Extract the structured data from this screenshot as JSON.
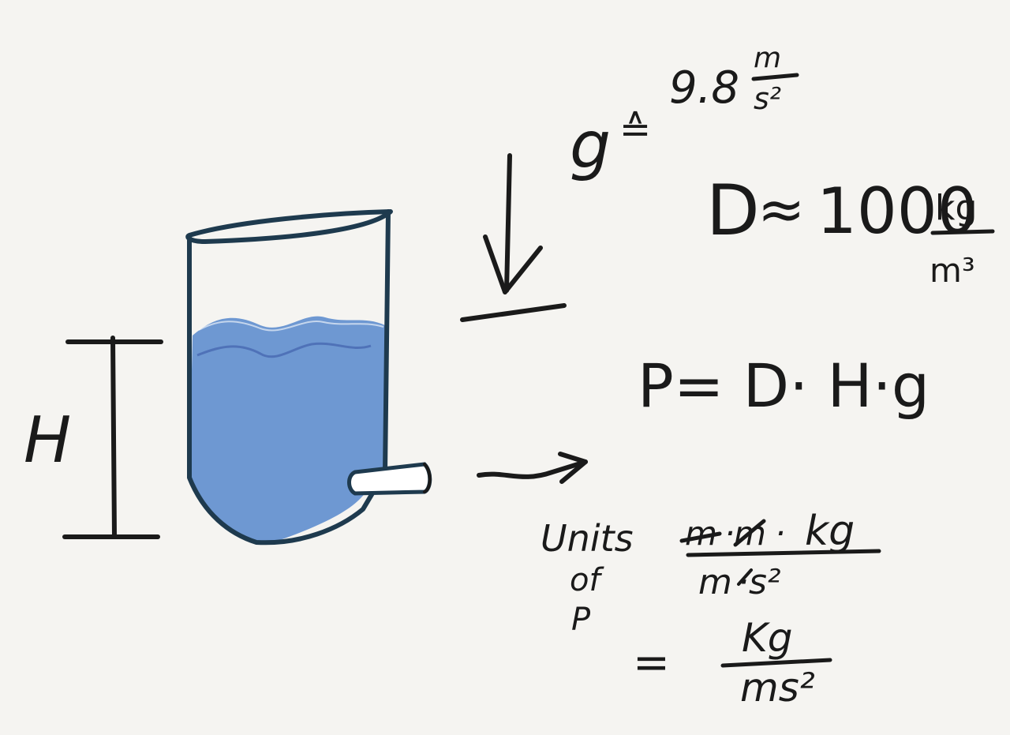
{
  "colors": {
    "background": "#f5f4f1",
    "ink": "#1a1a1a",
    "tank_outline": "#1e3a4e",
    "water": "#6e98d2",
    "water_crest": "#4f72b8"
  },
  "labels": {
    "height": "H",
    "gravity": {
      "symbol": "g",
      "approx": "≙",
      "value": "9.8",
      "unit_num": "m",
      "unit_den": "s²"
    },
    "density": {
      "symbol": "D",
      "approx": "≈",
      "value": "1000",
      "unit_num": "kg",
      "unit_den": "m³"
    },
    "formula": "P= D· H·g",
    "units": {
      "lines": [
        "Units",
        "of",
        "P"
      ],
      "num_struck_1": "m",
      "num_struck_2": "m",
      "num_rest": "kg",
      "den_struck": "m",
      "den_rest": "·s²",
      "equals": "=",
      "result_num": "Kg",
      "result_den": "ms²"
    }
  }
}
